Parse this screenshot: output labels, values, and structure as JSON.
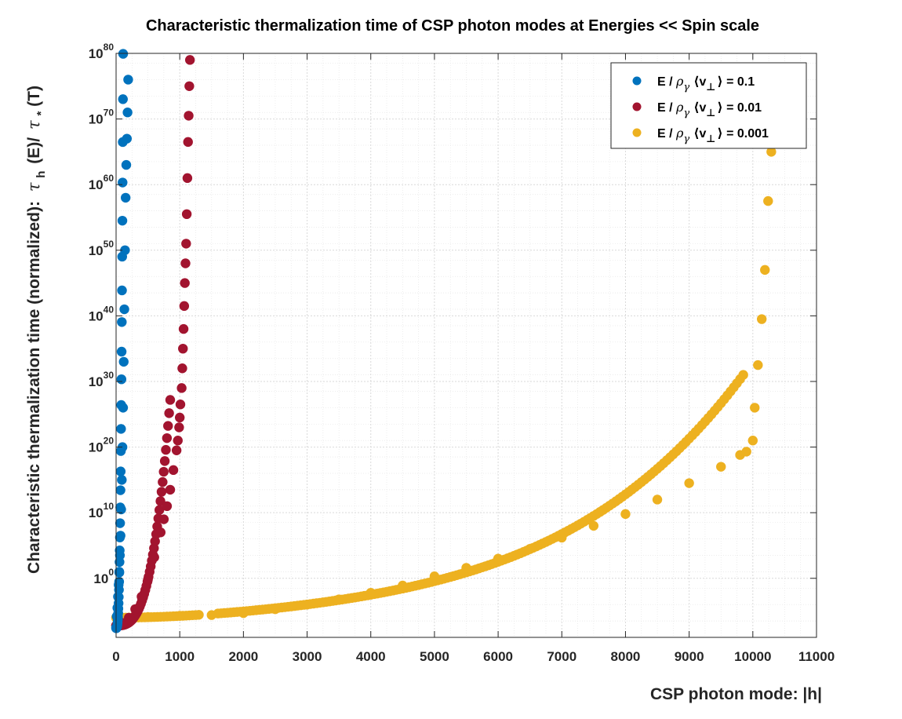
{
  "chart_data": {
    "type": "scatter",
    "title": "Characteristic thermalization time of CSP photon modes at Energies << Spin scale",
    "xlabel": "CSP photon mode: |h|",
    "ylabel": {
      "prefix": "Characteristic thermalization time (normalized):",
      "tau": "τ",
      "tau_sub": "h",
      "mid": "(E)/",
      "tau_star_sub": "*",
      "suffix": "(T)"
    },
    "xlim": [
      0,
      11000
    ],
    "ylim_log10": [
      -9,
      80
    ],
    "y_scale": "log",
    "grid": true,
    "minor_grid": true,
    "legend_position": "top-right",
    "x_ticks": [
      "0",
      "1000",
      "2000",
      "3000",
      "4000",
      "5000",
      "6000",
      "7000",
      "8000",
      "9000",
      "10000",
      "11000"
    ],
    "y_ticks": [
      {
        "base": "10",
        "exp": "0"
      },
      {
        "base": "10",
        "exp": "10"
      },
      {
        "base": "10",
        "exp": "20"
      },
      {
        "base": "10",
        "exp": "30"
      },
      {
        "base": "10",
        "exp": "40"
      },
      {
        "base": "10",
        "exp": "50"
      },
      {
        "base": "10",
        "exp": "60"
      },
      {
        "base": "10",
        "exp": "70"
      },
      {
        "base": "10",
        "exp": "80"
      }
    ],
    "series": [
      {
        "name": "E / ρ_γ ⟨v_⊥⟩ = 0.1",
        "legend_value": "= 0.1",
        "color": "#0072BD",
        "points": [
          [
            0,
            -7.5
          ],
          [
            10,
            -5.8
          ],
          [
            20,
            -4.5
          ],
          [
            30,
            -2.8
          ],
          [
            40,
            -1.0
          ],
          [
            50,
            1.0
          ],
          [
            60,
            3.5
          ],
          [
            70,
            6.5
          ],
          [
            80,
            10.5
          ],
          [
            90,
            15.0
          ],
          [
            100,
            20.0
          ],
          [
            110,
            26.0
          ],
          [
            120,
            33.0
          ],
          [
            130,
            41.0
          ],
          [
            140,
            50.0
          ],
          [
            150,
            58.0
          ],
          [
            160,
            63.0
          ],
          [
            170,
            67.0
          ],
          [
            180,
            71.0
          ],
          [
            190,
            76.0
          ]
        ],
        "curve": {
          "formula": "log10(tau) = -7.6 + 6.4e-5 * x^3",
          "x_min": 0,
          "x_max": 185,
          "step": 3
        }
      },
      {
        "name": "E / ρ_γ ⟨v_⊥⟩ = 0.01",
        "legend_value": "= 0.01",
        "color": "#A2142F",
        "points": [
          [
            0,
            -7.2
          ],
          [
            100,
            -6.8
          ],
          [
            200,
            -6.0
          ],
          [
            300,
            -4.7
          ],
          [
            400,
            -2.8
          ],
          [
            500,
            -0.2
          ],
          [
            600,
            3.2
          ],
          [
            700,
            7.0
          ],
          [
            750,
            9.0
          ],
          [
            800,
            11.0
          ],
          [
            850,
            13.5
          ],
          [
            900,
            16.5
          ],
          [
            950,
            19.5
          ],
          [
            970,
            21.0
          ],
          [
            990,
            23.0
          ],
          [
            1000,
            24.5
          ],
          [
            1010,
            26.5
          ],
          [
            1030,
            29.0
          ],
          [
            1040,
            32.0
          ],
          [
            1050,
            35.0
          ],
          [
            1060,
            38.0
          ],
          [
            1070,
            41.5
          ],
          [
            1080,
            45.0
          ],
          [
            1090,
            48.0
          ],
          [
            1100,
            51.0
          ],
          [
            1110,
            55.5
          ],
          [
            1120,
            61.0
          ],
          [
            1130,
            66.5
          ],
          [
            1140,
            70.5
          ],
          [
            1150,
            75.0
          ],
          [
            1160,
            79.0
          ]
        ],
        "curve": {
          "formula": "log10(tau) = -7.2 + 5.6e-8 * x^3",
          "x_min": 0,
          "x_max": 850,
          "step": 17
        }
      },
      {
        "name": "E / ρ_γ ⟨v_⊥⟩ = 0.001",
        "legend_value": "= 0.001",
        "color": "#EDB120",
        "points": [
          [
            0,
            -6.0
          ],
          [
            500,
            -5.9
          ],
          [
            1000,
            -5.7
          ],
          [
            1500,
            -5.6
          ],
          [
            2000,
            -5.3
          ],
          [
            2500,
            -4.7
          ],
          [
            3000,
            -4.0
          ],
          [
            3500,
            -3.2
          ],
          [
            4000,
            -2.2
          ],
          [
            4500,
            -1.1
          ],
          [
            5000,
            0.3
          ],
          [
            5500,
            1.6
          ],
          [
            6000,
            3.0
          ],
          [
            6500,
            4.5
          ],
          [
            7000,
            6.2
          ],
          [
            7500,
            8.0
          ],
          [
            8000,
            9.8
          ],
          [
            8500,
            12.0
          ],
          [
            9000,
            14.5
          ],
          [
            9500,
            17.0
          ],
          [
            9800,
            18.8
          ],
          [
            9900,
            19.3
          ],
          [
            10000,
            21.0
          ],
          [
            10030,
            26.0
          ],
          [
            10080,
            32.5
          ],
          [
            10140,
            39.5
          ],
          [
            10190,
            47.0
          ],
          [
            10240,
            57.5
          ],
          [
            10290,
            65.0
          ]
        ],
        "curve": {
          "formula": "log10(tau) = -6 + 3.0e-7 * x^2 - 4e-11 * x^3 + 4.9e-15 * x^4",
          "x_min": 0,
          "x_max": 9850,
          "step": 50,
          "gap": [
            1300,
            1600
          ]
        }
      }
    ]
  }
}
